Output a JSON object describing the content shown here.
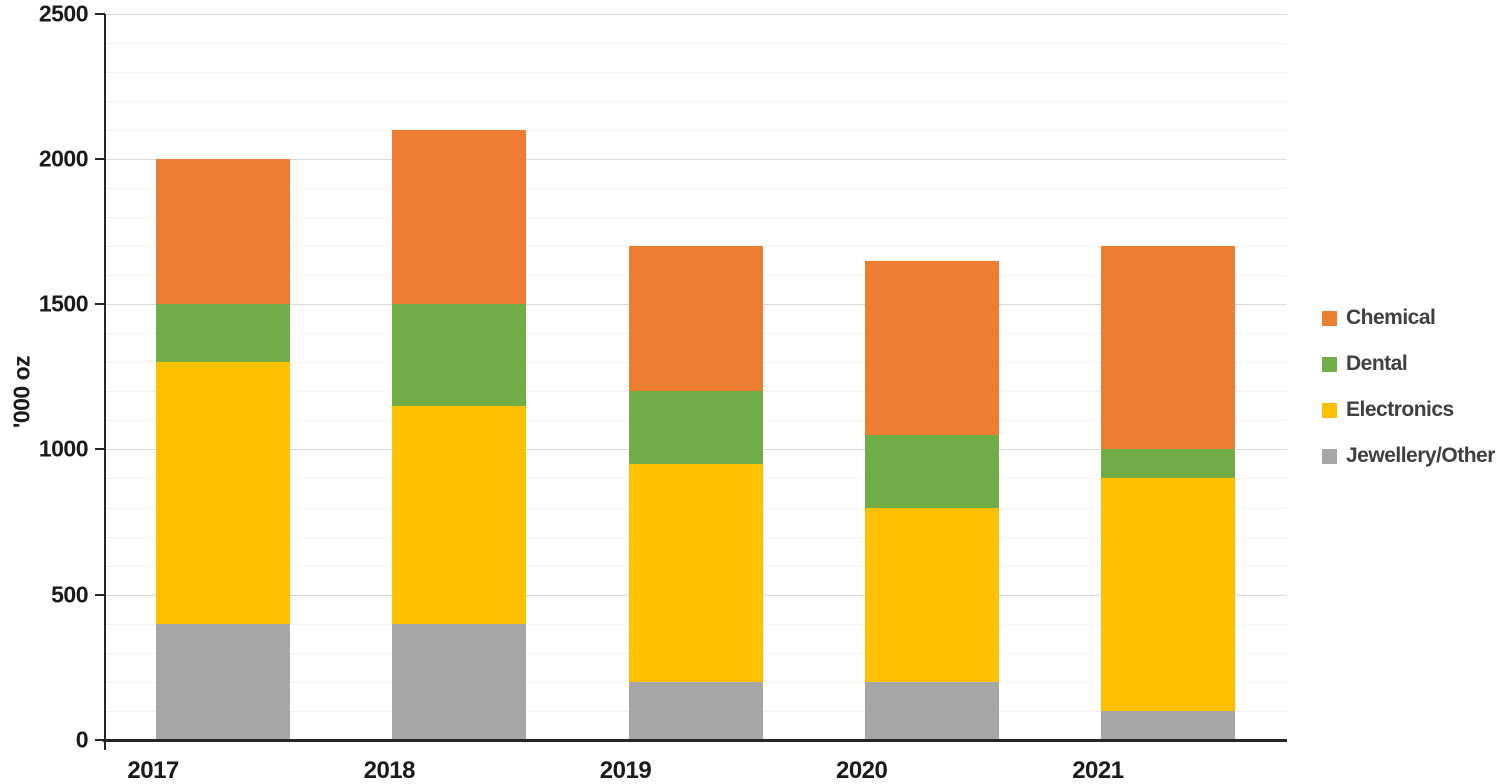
{
  "chart_data": {
    "type": "bar",
    "stacked": true,
    "title": "",
    "xlabel": "",
    "ylabel": "'000 oz",
    "categories": [
      "2017",
      "2018",
      "2019",
      "2020",
      "2021"
    ],
    "series": [
      {
        "name": "Jewellery/Other",
        "color": "#A6A6A6",
        "values": [
          400,
          400,
          200,
          200,
          100
        ]
      },
      {
        "name": "Electronics",
        "color": "#FFC000",
        "values": [
          900,
          750,
          750,
          600,
          800
        ]
      },
      {
        "name": "Dental",
        "color": "#70AD47",
        "values": [
          200,
          350,
          250,
          250,
          100
        ]
      },
      {
        "name": "Chemical",
        "color": "#ED7D31",
        "values": [
          500,
          600,
          500,
          600,
          700
        ]
      }
    ],
    "y_axis": {
      "min": 0,
      "max": 2500,
      "major_step": 500,
      "minor_step": 100,
      "tick_labels": [
        "0",
        "500",
        "1000",
        "1500",
        "2000",
        "2500"
      ]
    },
    "legend": {
      "position": "right",
      "items": [
        "Chemical",
        "Dental",
        "Electronics",
        "Jewellery/Other"
      ]
    },
    "grid": {
      "on": true,
      "major_color": "#D9D9D9",
      "minor_color": "#F3F3F3"
    },
    "axis_color": "#262626",
    "label_color": "#1A1A1A",
    "legend_text_color": "#3F3F3F"
  }
}
